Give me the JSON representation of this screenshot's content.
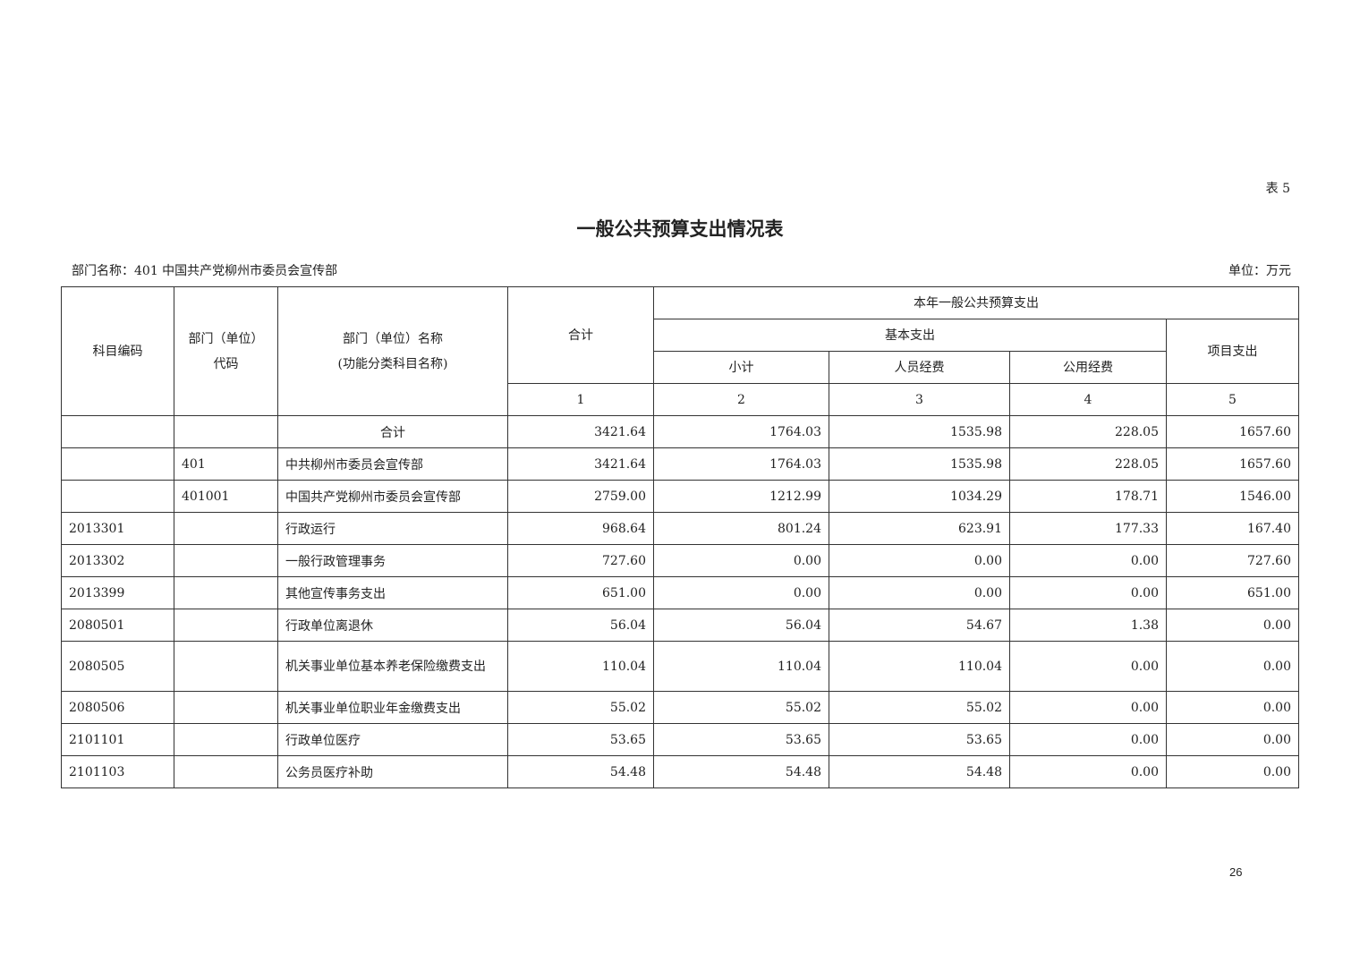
{
  "table_no": "表 5",
  "title": "一般公共预算支出情况表",
  "dept_label": "部门名称：401 中国共产党柳州市委员会宣传部",
  "unit_label": "单位：万元",
  "headers": {
    "code": "科目编码",
    "dept_code_1": "部门（单位）",
    "dept_code_2": "代码",
    "dept_name_1": "部门（单位）名称",
    "dept_name_2": "(功能分类科目名称)",
    "total": "合计",
    "group": "本年一般公共预算支出",
    "basic": "基本支出",
    "project": "项目支出",
    "subtotal": "小计",
    "personnel": "人员经费",
    "public": "公用经费",
    "nums": [
      "1",
      "2",
      "3",
      "4",
      "5"
    ]
  },
  "rows": [
    {
      "code": "",
      "dept_code": "",
      "name": "合计",
      "total": "3421.64",
      "subtotal": "1764.03",
      "personnel": "1535.98",
      "public": "228.05",
      "project": "1657.60"
    },
    {
      "code": "",
      "dept_code": "401",
      "name": "中共柳州市委员会宣传部",
      "total": "3421.64",
      "subtotal": "1764.03",
      "personnel": "1535.98",
      "public": "228.05",
      "project": "1657.60"
    },
    {
      "code": "",
      "dept_code": "401001",
      "name": "中国共产党柳州市委员会宣传部",
      "total": "2759.00",
      "subtotal": "1212.99",
      "personnel": "1034.29",
      "public": "178.71",
      "project": "1546.00"
    },
    {
      "code": "2013301",
      "dept_code": "",
      "name": "行政运行",
      "total": "968.64",
      "subtotal": "801.24",
      "personnel": "623.91",
      "public": "177.33",
      "project": "167.40"
    },
    {
      "code": "2013302",
      "dept_code": "",
      "name": "一般行政管理事务",
      "total": "727.60",
      "subtotal": "0.00",
      "personnel": "0.00",
      "public": "0.00",
      "project": "727.60"
    },
    {
      "code": "2013399",
      "dept_code": "",
      "name": "其他宣传事务支出",
      "total": "651.00",
      "subtotal": "0.00",
      "personnel": "0.00",
      "public": "0.00",
      "project": "651.00"
    },
    {
      "code": "2080501",
      "dept_code": "",
      "name": "行政单位离退休",
      "total": "56.04",
      "subtotal": "56.04",
      "personnel": "54.67",
      "public": "1.38",
      "project": "0.00"
    },
    {
      "code": "2080505",
      "dept_code": "",
      "name": "机关事业单位基本养老保险缴费支出",
      "total": "110.04",
      "subtotal": "110.04",
      "personnel": "110.04",
      "public": "0.00",
      "project": "0.00"
    },
    {
      "code": "2080506",
      "dept_code": "",
      "name": "机关事业单位职业年金缴费支出",
      "total": "55.02",
      "subtotal": "55.02",
      "personnel": "55.02",
      "public": "0.00",
      "project": "0.00"
    },
    {
      "code": "2101101",
      "dept_code": "",
      "name": "行政单位医疗",
      "total": "53.65",
      "subtotal": "53.65",
      "personnel": "53.65",
      "public": "0.00",
      "project": "0.00"
    },
    {
      "code": "2101103",
      "dept_code": "",
      "name": "公务员医疗补助",
      "total": "54.48",
      "subtotal": "54.48",
      "personnel": "54.48",
      "public": "0.00",
      "project": "0.00"
    }
  ],
  "page_number": "26"
}
